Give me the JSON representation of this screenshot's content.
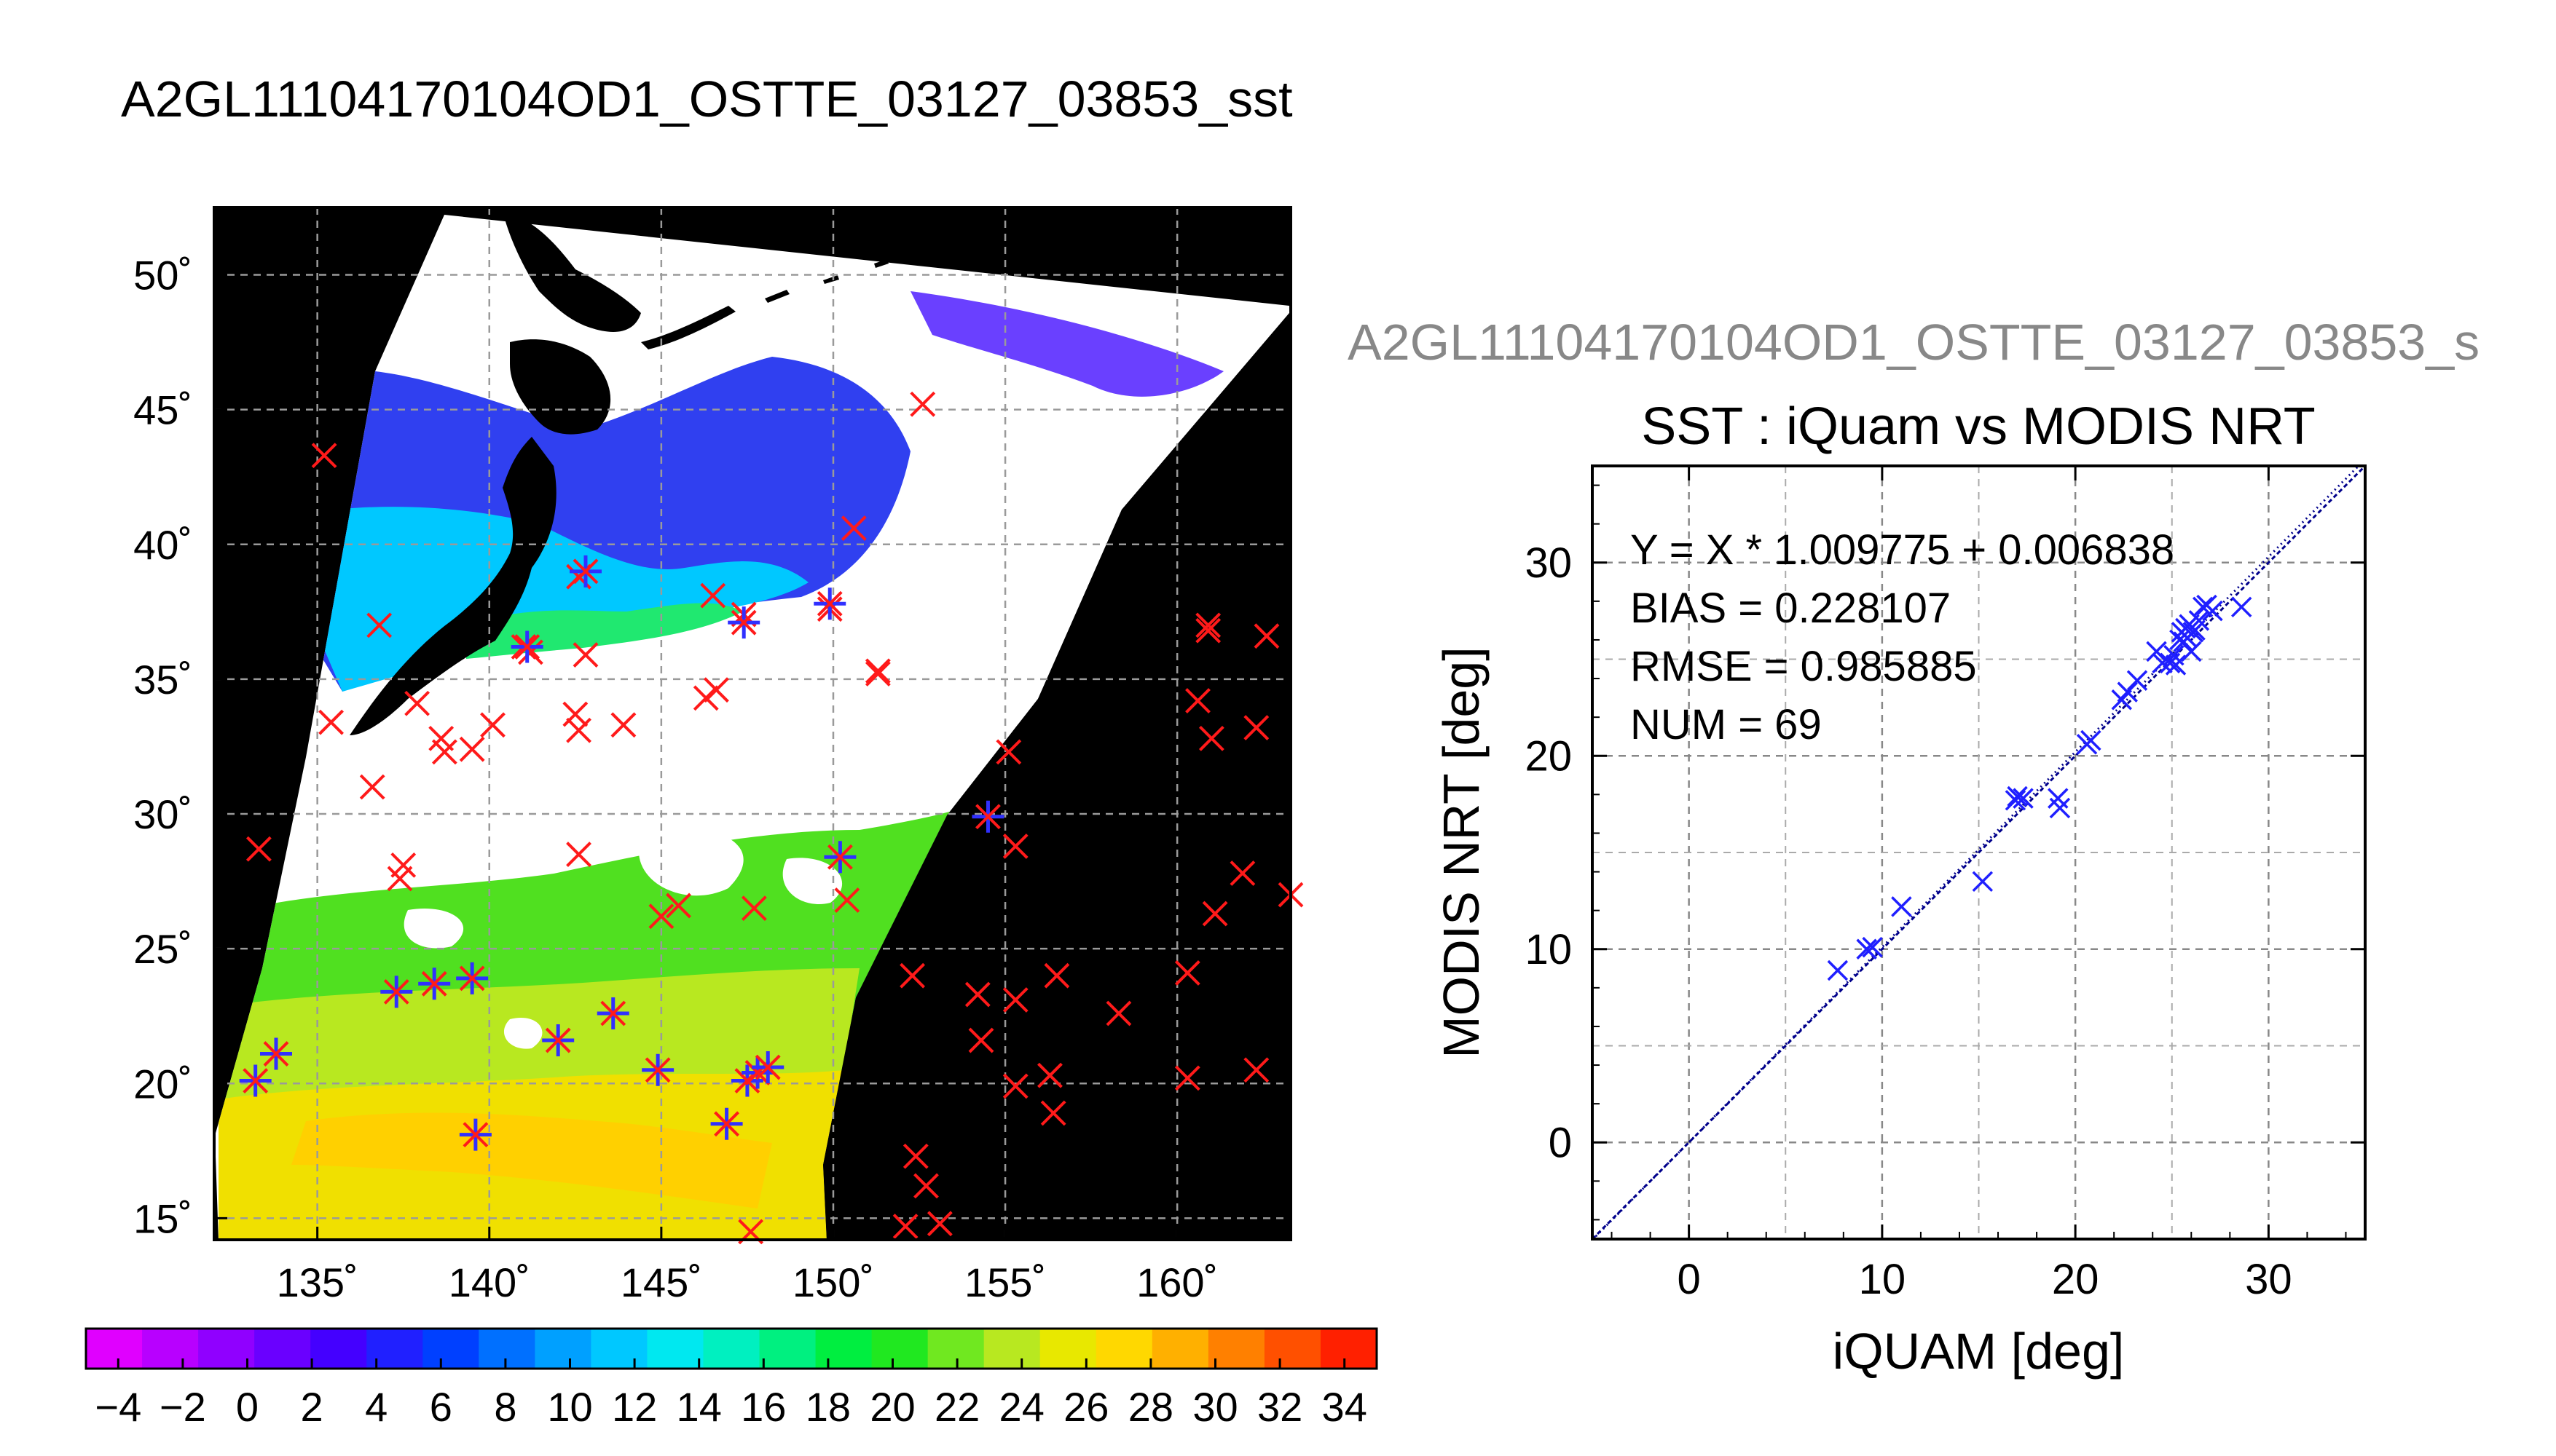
{
  "header": {
    "title": "A2GL11104170104OD1_OSTTE_03127_03853_sst",
    "secondary_title": "A2GL11104170104OD1_OSTTE_03127_03853_s"
  },
  "colors": {
    "land": "#000000",
    "cloud": "#ffffff",
    "grid": "#9a9a9a",
    "match_marker": "#ff1a1a",
    "valid_marker": "#3030ff",
    "scatter_marker": "#1f1fff",
    "fit_line": "#00008b"
  },
  "chart_data": [
    {
      "type": "heatmap",
      "name": "sst-map",
      "description": "MODIS SST swath map with iQuam matchup locations",
      "x_ticks": [
        "135˚",
        "140˚",
        "145˚",
        "150˚",
        "155˚",
        "160˚"
      ],
      "x_tick_values": [
        135,
        140,
        145,
        150,
        155,
        160
      ],
      "y_ticks": [
        "15˚",
        "20˚",
        "25˚",
        "30˚",
        "35˚",
        "40˚",
        "45˚",
        "50˚"
      ],
      "y_tick_values": [
        15,
        20,
        25,
        30,
        35,
        40,
        45,
        50
      ],
      "xlim": [
        132,
        163.3
      ],
      "ylim": [
        14.2,
        52.5
      ],
      "grid": true,
      "colorbar": {
        "ticks": [
          "−4",
          "−2",
          "0",
          "2",
          "4",
          "6",
          "8",
          "10",
          "12",
          "14",
          "16",
          "18",
          "20",
          "22",
          "24",
          "26",
          "28",
          "30",
          "32",
          "34"
        ],
        "range": [
          -5,
          35
        ],
        "colors": [
          "#e000ff",
          "#b800ff",
          "#9000ff",
          "#6a00ff",
          "#4400ff",
          "#2020ff",
          "#0040ff",
          "#0070ff",
          "#00a0ff",
          "#00c8ff",
          "#00e8f0",
          "#00f0c0",
          "#00f080",
          "#00ee40",
          "#20e820",
          "#70e820",
          "#b8e820",
          "#e8e800",
          "#ffd800",
          "#ffb000",
          "#ff8000",
          "#ff5000",
          "#ff2000"
        ]
      },
      "red_markers": [
        [
          135.2,
          43.3
        ],
        [
          133.3,
          28.7
        ],
        [
          135.4,
          33.4
        ],
        [
          136.6,
          31.0
        ],
        [
          137.4,
          27.6
        ],
        [
          137.5,
          28.1
        ],
        [
          136.8,
          37.0
        ],
        [
          137.9,
          34.1
        ],
        [
          138.6,
          32.8
        ],
        [
          138.7,
          32.3
        ],
        [
          139.5,
          32.4
        ],
        [
          140.1,
          33.3
        ],
        [
          141.0,
          36.2
        ],
        [
          141.2,
          36.0
        ],
        [
          142.5,
          33.7
        ],
        [
          142.6,
          33.1
        ],
        [
          142.8,
          35.9
        ],
        [
          142.6,
          38.8
        ],
        [
          143.9,
          33.3
        ],
        [
          142.6,
          28.5
        ],
        [
          145.0,
          26.2
        ],
        [
          145.5,
          26.6
        ],
        [
          146.5,
          38.1
        ],
        [
          146.3,
          34.3
        ],
        [
          146.6,
          34.6
        ],
        [
          147.4,
          37.4
        ],
        [
          147.7,
          26.5
        ],
        [
          147.6,
          14.5
        ],
        [
          149.9,
          37.6
        ],
        [
          150.4,
          26.8
        ],
        [
          150.6,
          40.6
        ],
        [
          151.3,
          35.3
        ],
        [
          151.3,
          35.2
        ],
        [
          152.3,
          24.0
        ],
        [
          152.6,
          45.2
        ],
        [
          152.1,
          14.7
        ],
        [
          152.4,
          17.3
        ],
        [
          152.7,
          16.2
        ],
        [
          153.1,
          14.8
        ],
        [
          154.2,
          23.3
        ],
        [
          154.3,
          21.6
        ],
        [
          155.1,
          32.3
        ],
        [
          155.3,
          23.1
        ],
        [
          155.3,
          28.8
        ],
        [
          155.3,
          19.9
        ],
        [
          156.5,
          24.0
        ],
        [
          156.3,
          20.3
        ],
        [
          156.4,
          18.9
        ],
        [
          158.3,
          22.6
        ],
        [
          160.3,
          24.1
        ],
        [
          160.3,
          20.2
        ],
        [
          160.6,
          34.2
        ],
        [
          160.9,
          37.0
        ],
        [
          160.9,
          36.8
        ],
        [
          161.0,
          32.8
        ],
        [
          161.1,
          26.3
        ],
        [
          161.9,
          27.8
        ],
        [
          162.3,
          33.2
        ],
        [
          162.3,
          20.5
        ],
        [
          162.6,
          36.6
        ],
        [
          163.3,
          27.0
        ]
      ],
      "valid_markers": [
        [
          133.2,
          20.1
        ],
        [
          133.8,
          21.1
        ],
        [
          137.3,
          23.4
        ],
        [
          138.4,
          23.7
        ],
        [
          139.5,
          23.9
        ],
        [
          139.6,
          18.1
        ],
        [
          141.1,
          36.2
        ],
        [
          142.0,
          21.6
        ],
        [
          142.8,
          39.0
        ],
        [
          143.6,
          22.6
        ],
        [
          144.9,
          20.5
        ],
        [
          146.9,
          18.5
        ],
        [
          147.5,
          20.1
        ],
        [
          147.8,
          20.4
        ],
        [
          148.1,
          20.6
        ],
        [
          147.4,
          37.1
        ],
        [
          149.9,
          37.8
        ],
        [
          150.2,
          28.4
        ],
        [
          154.5,
          29.9
        ]
      ]
    },
    {
      "type": "scatter",
      "name": "sst-scatter",
      "title": "SST : iQuam vs MODIS NRT",
      "xlabel": "iQUAM [deg]",
      "ylabel": "MODIS NRT [deg]",
      "xlim": [
        -5,
        35
      ],
      "ylim": [
        -5,
        35
      ],
      "x_ticks": [
        "0",
        "10",
        "20",
        "30"
      ],
      "x_tick_values": [
        0,
        10,
        20,
        30
      ],
      "y_ticks": [
        "0",
        "10",
        "20",
        "30"
      ],
      "y_tick_values": [
        0,
        10,
        20,
        30
      ],
      "grid": true,
      "stats": {
        "fit": "Y = X * 1.009775 + 0.006838",
        "bias": "BIAS = 0.228107",
        "rmse": "RMSE = 0.985885",
        "num": "NUM = 69"
      },
      "fit_slope": 1.009775,
      "fit_intercept": 0.006838,
      "x": [
        7.7,
        9.2,
        9.5,
        11.0,
        15.2,
        16.9,
        17.0,
        17.3,
        19.1,
        19.2,
        20.6,
        20.8,
        22.4,
        22.7,
        23.2,
        24.2,
        24.5,
        24.9,
        25.1,
        25.2,
        25.4,
        25.5,
        25.6,
        25.7,
        25.8,
        25.9,
        26.0,
        26.1,
        26.2,
        26.4,
        26.6,
        26.8,
        27.1,
        28.6
      ],
      "y": [
        8.9,
        10.0,
        10.1,
        12.2,
        13.5,
        17.7,
        17.9,
        17.8,
        17.8,
        17.3,
        20.6,
        20.8,
        22.9,
        23.3,
        23.9,
        25.4,
        24.8,
        24.8,
        25.2,
        24.7,
        26.0,
        26.4,
        25.9,
        26.6,
        26.1,
        26.8,
        25.4,
        26.4,
        26.5,
        27.0,
        27.7,
        27.8,
        27.5,
        27.7
      ]
    }
  ]
}
